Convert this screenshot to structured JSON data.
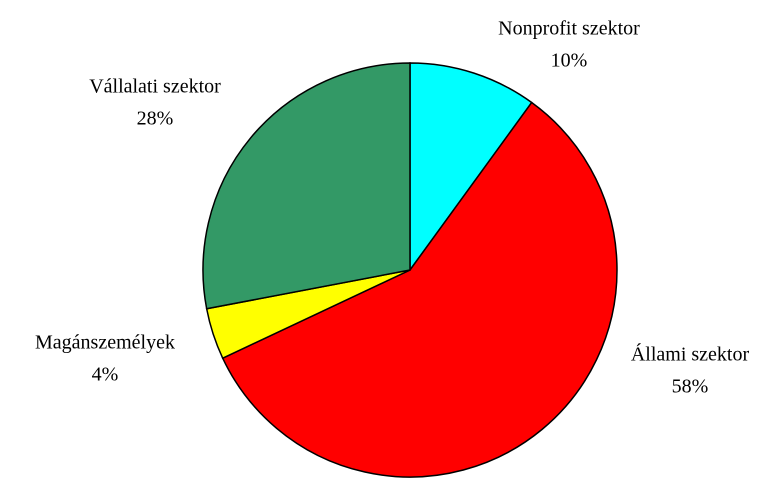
{
  "chart_data": {
    "type": "pie",
    "categories": [
      "Nonprofit szektor",
      "Állami szektor",
      "Magánszemélyek",
      "Vállalati szektor"
    ],
    "values": [
      10,
      58,
      4,
      28
    ],
    "value_labels": [
      "10%",
      "58%",
      "4%",
      "28%"
    ],
    "colors": [
      "#00ffff",
      "#ff0000",
      "#ffff00",
      "#339966"
    ]
  }
}
